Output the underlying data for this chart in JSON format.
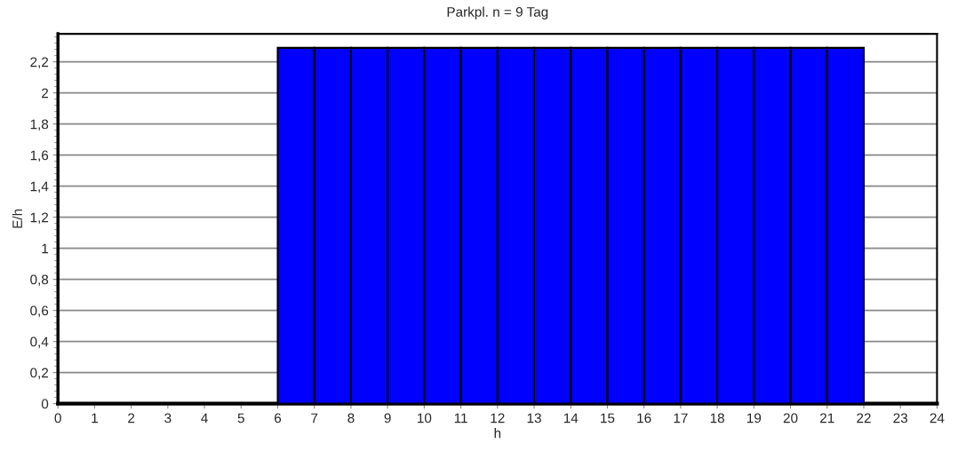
{
  "chart_data": {
    "type": "histogram",
    "title": "Parkpl. n = 9 Tag",
    "xlabel": "h",
    "ylabel": "E/h",
    "bins": [
      0,
      1,
      2,
      3,
      4,
      5,
      6,
      7,
      8,
      9,
      10,
      11,
      12,
      13,
      14,
      15,
      16,
      17,
      18,
      19,
      20,
      21,
      22,
      23,
      24
    ],
    "values": [
      0,
      0,
      0,
      0,
      0,
      0,
      2.29,
      2.29,
      2.29,
      2.29,
      2.29,
      2.29,
      2.29,
      2.29,
      2.29,
      2.29,
      2.29,
      2.29,
      2.29,
      2.29,
      2.29,
      2.29,
      0,
      0
    ],
    "color": "#0000ff",
    "xlim": [
      0,
      24
    ],
    "xticks": [
      0,
      1,
      2,
      3,
      4,
      5,
      6,
      7,
      8,
      9,
      10,
      11,
      12,
      13,
      14,
      15,
      16,
      17,
      18,
      19,
      20,
      21,
      22,
      23,
      24
    ],
    "ylim": [
      0,
      2.38
    ],
    "yticks": [
      0,
      {
        "value": 0.2,
        "label": "0,2"
      },
      {
        "value": 0.4,
        "label": "0,4"
      },
      {
        "value": 0.6,
        "label": "0,6"
      },
      {
        "value": 0.8,
        "label": "0,8"
      },
      1,
      {
        "value": 1.2,
        "label": "1,2"
      },
      {
        "value": 1.4,
        "label": "1,4"
      },
      {
        "value": 1.6,
        "label": "1,6"
      },
      {
        "value": 1.8,
        "label": "1,8"
      },
      2,
      {
        "value": 2.2,
        "label": "2,2"
      }
    ],
    "grid": "y"
  }
}
